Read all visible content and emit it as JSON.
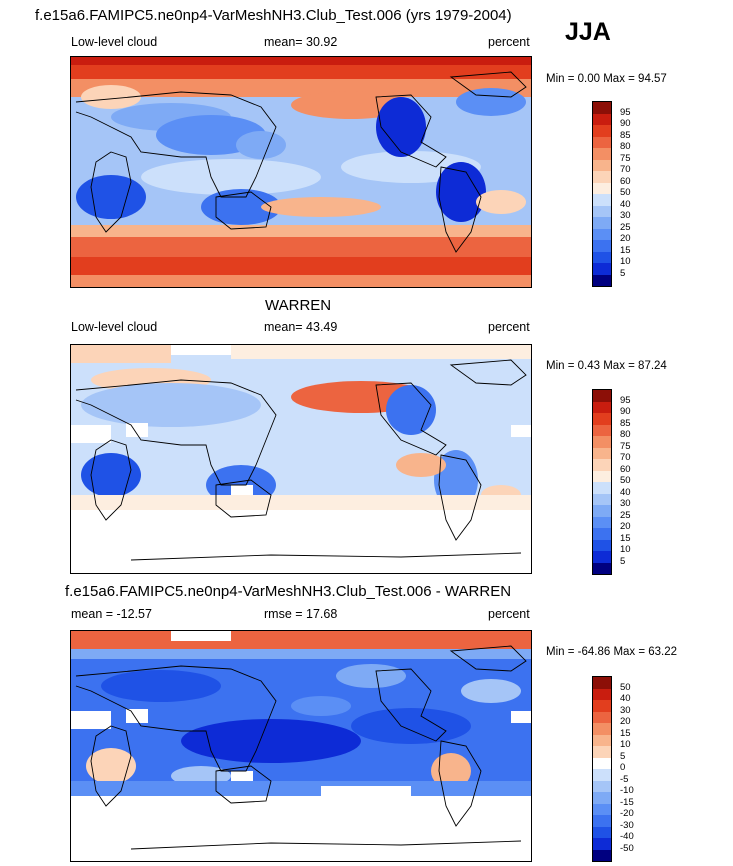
{
  "season": "JJA",
  "panels": [
    {
      "title": "f.e15a6.FAMIPC5.ne0np4-VarMeshNH3.Club_Test.006 (yrs 1979-2004)",
      "left_label": "Low-level cloud",
      "center_label": "mean=  30.92",
      "right_label": "percent",
      "minmax": "Min =   0.00 Max =  94.57",
      "colorbar": {
        "colors": [
          "#000080",
          "#0d2bd6",
          "#1f52e6",
          "#3c72f0",
          "#5b8ff5",
          "#7eaaf5",
          "#a5c5f7",
          "#cce0fb",
          "#fdeee0",
          "#fcd4b8",
          "#f8b48c",
          "#f38f64",
          "#ec6440",
          "#e23e1e",
          "#c91d0f",
          "#8c0f07"
        ],
        "labels": [
          "95",
          "90",
          "85",
          "80",
          "75",
          "70",
          "60",
          "50",
          "40",
          "30",
          "25",
          "20",
          "15",
          "10",
          "5"
        ]
      }
    },
    {
      "title": "WARREN",
      "left_label": "Low-level cloud",
      "center_label": "mean=  43.49",
      "right_label": "percent",
      "minmax": "Min =   0.43 Max =  87.24",
      "colorbar": {
        "colors": [
          "#000080",
          "#0d2bd6",
          "#1f52e6",
          "#3c72f0",
          "#5b8ff5",
          "#7eaaf5",
          "#a5c5f7",
          "#cce0fb",
          "#fdeee0",
          "#fcd4b8",
          "#f8b48c",
          "#f38f64",
          "#ec6440",
          "#e23e1e",
          "#c91d0f",
          "#8c0f07"
        ],
        "labels": [
          "95",
          "90",
          "85",
          "80",
          "75",
          "70",
          "60",
          "50",
          "40",
          "30",
          "25",
          "20",
          "15",
          "10",
          "5"
        ]
      }
    },
    {
      "title": "f.e15a6.FAMIPC5.ne0np4-VarMeshNH3.Club_Test.006 - WARREN",
      "left_label": "mean = -12.57",
      "center_label": "rmse =  17.68",
      "right_label": "percent",
      "minmax": "Min = -64.86 Max =  63.22",
      "colorbar": {
        "colors": [
          "#000080",
          "#0d2bd6",
          "#1f52e6",
          "#3c72f0",
          "#5b8ff5",
          "#7eaaf5",
          "#a5c5f7",
          "#cce0fb",
          "#ffffff",
          "#fcd4b8",
          "#f8b48c",
          "#f38f64",
          "#ec6440",
          "#e23e1e",
          "#c91d0f",
          "#8c0f07"
        ],
        "labels": [
          "50",
          "40",
          "30",
          "20",
          "15",
          "10",
          "5",
          "0",
          "-5",
          "-10",
          "-15",
          "-20",
          "-30",
          "-40",
          "-50"
        ]
      }
    }
  ],
  "chart_data": [
    {
      "type": "heatmap",
      "title": "f.e15a6.FAMIPC5.ne0np4-VarMeshNH3.Club_Test.006 (yrs 1979-2004)",
      "variable": "Low-level cloud",
      "units": "percent",
      "season": "JJA",
      "mean": 30.92,
      "min": 0.0,
      "max": 94.57,
      "contour_levels": [
        5,
        10,
        15,
        20,
        25,
        30,
        40,
        50,
        60,
        70,
        75,
        80,
        85,
        90,
        95
      ]
    },
    {
      "type": "heatmap",
      "title": "WARREN",
      "variable": "Low-level cloud",
      "units": "percent",
      "mean": 43.49,
      "min": 0.43,
      "max": 87.24,
      "contour_levels": [
        5,
        10,
        15,
        20,
        25,
        30,
        40,
        50,
        60,
        70,
        75,
        80,
        85,
        90,
        95
      ]
    },
    {
      "type": "heatmap",
      "title": "f.e15a6.FAMIPC5.ne0np4-VarMeshNH3.Club_Test.006 - WARREN",
      "units": "percent",
      "mean": -12.57,
      "rmse": 17.68,
      "min": -64.86,
      "max": 63.22,
      "contour_levels": [
        -50,
        -40,
        -30,
        -20,
        -15,
        -10,
        -5,
        0,
        5,
        10,
        15,
        20,
        30,
        40,
        50
      ]
    }
  ]
}
